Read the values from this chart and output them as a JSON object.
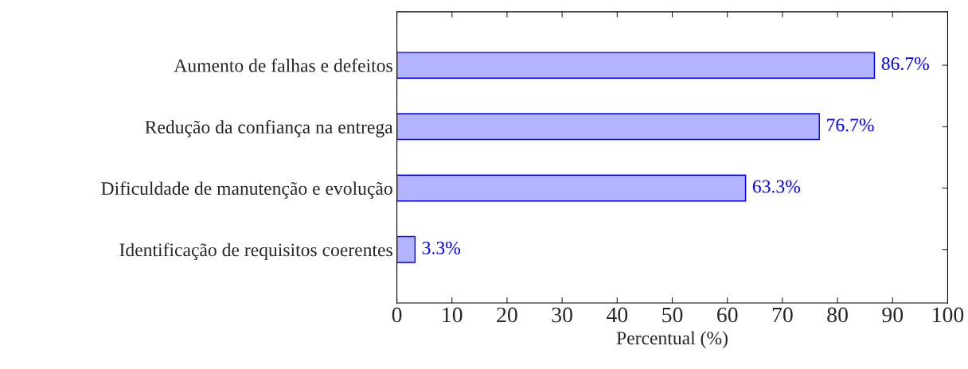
{
  "chart_data": {
    "type": "bar",
    "orientation": "horizontal",
    "xlabel": "Percentual (%)",
    "categories": [
      "Aumento de falhas e defeitos",
      "Redução da confiança na entrega",
      "Dificuldade de manutenção e evolução",
      "Identificação de requisitos coerentes"
    ],
    "values": [
      86.7,
      76.7,
      63.3,
      3.3
    ],
    "value_labels": [
      "86.7%",
      "76.7%",
      "63.3%",
      "3.3%"
    ],
    "color": "#b3b3ff",
    "xlim": [
      0,
      100
    ],
    "xticks": [
      0,
      10,
      20,
      30,
      40,
      50,
      60,
      70,
      80,
      90,
      100
    ],
    "grid": false
  }
}
